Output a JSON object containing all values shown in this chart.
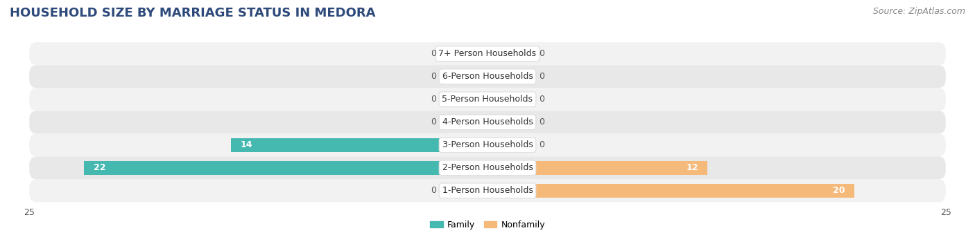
{
  "title": "HOUSEHOLD SIZE BY MARRIAGE STATUS IN MEDORA",
  "source": "Source: ZipAtlas.com",
  "categories": [
    "7+ Person Households",
    "6-Person Households",
    "5-Person Households",
    "4-Person Households",
    "3-Person Households",
    "2-Person Households",
    "1-Person Households"
  ],
  "family_values": [
    0,
    0,
    0,
    0,
    14,
    22,
    0
  ],
  "nonfamily_values": [
    0,
    0,
    0,
    0,
    0,
    12,
    20
  ],
  "family_color": "#45b8b0",
  "nonfamily_color": "#f5b97a",
  "xlim": 25,
  "bar_height": 0.62,
  "row_bg_light": "#f2f2f2",
  "row_bg_dark": "#e8e8e8",
  "title_color": "#2e4a7a",
  "title_fontsize": 13,
  "tick_fontsize": 9,
  "source_fontsize": 9,
  "label_fontsize": 9,
  "value_fontsize": 9,
  "stub_size": 2.5
}
